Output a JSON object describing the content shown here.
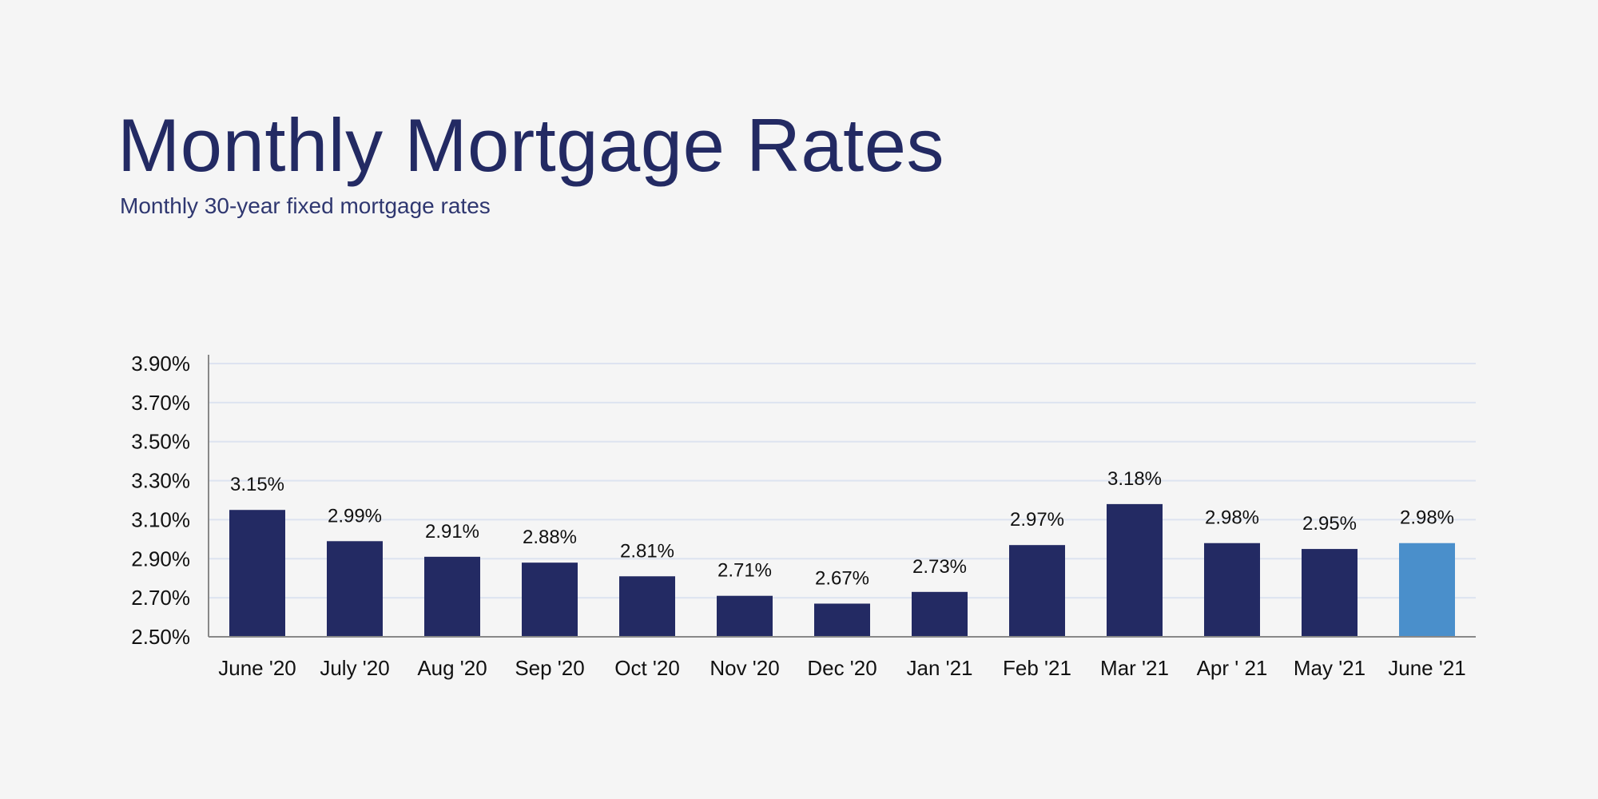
{
  "chart_data": {
    "type": "bar",
    "title": "Monthly Mortgage Rates",
    "subtitle": "Monthly 30-year fixed mortgage rates",
    "xlabel": "",
    "ylabel": "",
    "categories": [
      "June '20",
      "July '20",
      "Aug '20",
      "Sep '20",
      "Oct '20",
      "Nov '20",
      "Dec '20",
      "Jan '21",
      "Feb '21",
      "Mar '21",
      "Apr ' 21",
      "May '21",
      "June '21"
    ],
    "values": [
      3.15,
      2.99,
      2.91,
      2.88,
      2.81,
      2.71,
      2.67,
      2.73,
      2.97,
      3.18,
      2.98,
      2.95,
      2.98
    ],
    "data_labels": [
      "3.15%",
      "2.99%",
      "2.91%",
      "2.88%",
      "2.81%",
      "2.71%",
      "2.67%",
      "2.73%",
      "2.97%",
      "3.18%",
      "2.98%",
      "2.95%",
      "2.98%"
    ],
    "ylim": [
      2.5,
      3.9
    ],
    "yticks": [
      2.5,
      2.7,
      2.9,
      3.1,
      3.3,
      3.5,
      3.7,
      3.9
    ],
    "ytick_labels": [
      "2.50%",
      "2.70%",
      "2.90%",
      "3.10%",
      "3.30%",
      "3.50%",
      "3.70%",
      "3.90%"
    ],
    "grid": true,
    "legend": "none",
    "colors": {
      "bar": "#232a63",
      "highlight": "#4a8fcb",
      "highlight_index": 12,
      "grid": "#dde3f0",
      "axis": "#888888"
    }
  }
}
